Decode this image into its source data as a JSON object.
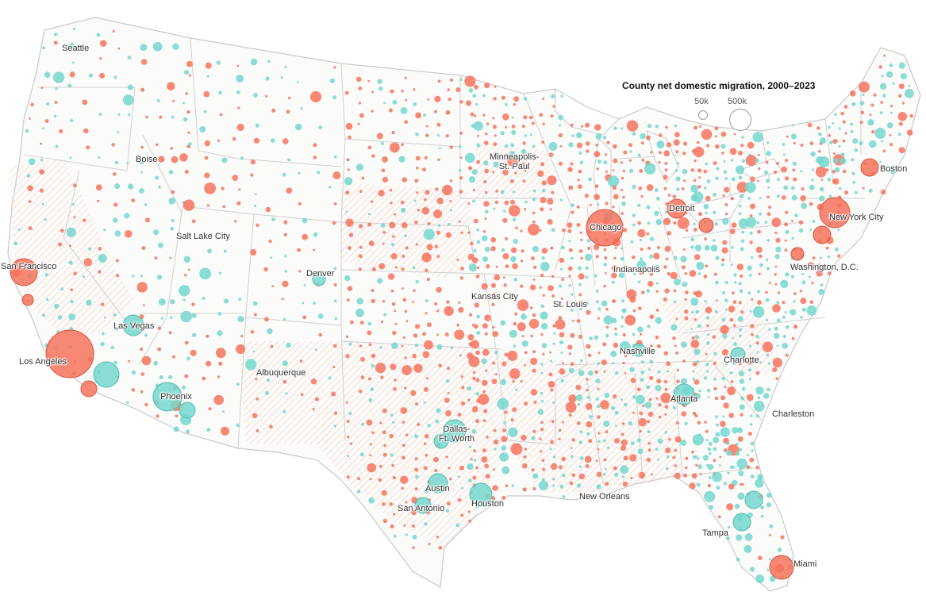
{
  "legend": {
    "title": "County net domestic migration, 2000–2023",
    "small_label": "50k",
    "large_label": "500k"
  },
  "colors": {
    "gain": "#74d7cd",
    "loss": "#f4735d",
    "gain_stroke": "#4fbcb1",
    "loss_stroke": "#d9543f",
    "border": "#c9c9c9",
    "hatch": "#f2c6b6"
  },
  "cities": {
    "seattle": "Seattle",
    "boise": "Boise",
    "san_francisco": "San Francisco",
    "salt_lake_city": "Salt Lake City",
    "denver": "Denver",
    "las_vegas": "Las Vegas",
    "los_angeles": "Los Angeles",
    "albuquerque": "Albuquerque",
    "phoenix": "Phoenix",
    "minneapolis_line1": "Minneapolis-",
    "minneapolis_line2": "St. Paul",
    "kansas_city": "Kansas City",
    "st_louis": "St. Louis",
    "chicago": "Chicago",
    "detroit": "Detroit",
    "indianapolis": "Indianapolis",
    "nashville": "Nashville",
    "atlanta": "Atlanta",
    "charlotte": "Charlotte",
    "charleston": "Charleston",
    "washington": "Washington, D.C.",
    "new_york": "New York City",
    "boston": "Boston",
    "dallas_line1": "Dallas-",
    "dallas_line2": "Ft. Worth",
    "austin": "Austin",
    "san_antonio": "San Antonio",
    "houston": "Houston",
    "new_orleans": "New Orleans",
    "tampa": "Tampa",
    "miami": "Miami"
  },
  "metro_bubbles": [
    {
      "city": "Los Angeles",
      "type": "loss",
      "migration_k": -1800
    },
    {
      "city": "Chicago",
      "type": "loss",
      "migration_k": -1000
    },
    {
      "city": "New York City",
      "type": "loss",
      "migration_k": -1100
    },
    {
      "city": "San Francisco",
      "type": "loss",
      "migration_k": -450
    },
    {
      "city": "Miami",
      "type": "loss",
      "migration_k": -450
    },
    {
      "city": "Boston",
      "type": "loss",
      "migration_k": -250
    },
    {
      "city": "Detroit",
      "type": "loss",
      "migration_k": -300
    },
    {
      "city": "Phoenix",
      "type": "gain",
      "migration_k": 650
    },
    {
      "city": "Las Vegas",
      "type": "gain",
      "migration_k": 300
    },
    {
      "city": "Dallas-Ft. Worth",
      "type": "gain",
      "migration_k": 500
    },
    {
      "city": "Houston",
      "type": "gain",
      "migration_k": 450
    },
    {
      "city": "Austin",
      "type": "gain",
      "migration_k": 350
    },
    {
      "city": "Atlanta",
      "type": "gain",
      "migration_k": 300
    },
    {
      "city": "Tampa",
      "type": "gain",
      "migration_k": 300
    },
    {
      "city": "Charlotte",
      "type": "gain",
      "migration_k": 200
    },
    {
      "city": "Denver",
      "type": "gain",
      "migration_k": 150
    },
    {
      "city": "Nashville",
      "type": "gain",
      "migration_k": 150
    }
  ]
}
